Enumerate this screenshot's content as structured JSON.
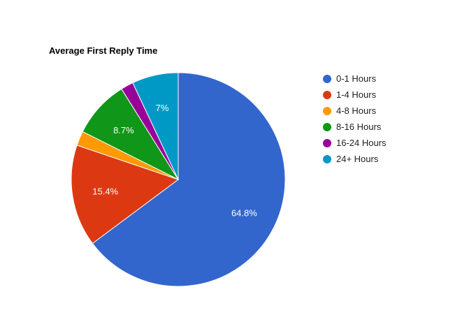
{
  "chart_data": {
    "type": "pie",
    "title": "Average First Reply Time",
    "categories": [
      "0-1 Hours",
      "1-4 Hours",
      "4-8 Hours",
      "8-16 Hours",
      "16-24 Hours",
      "24+ Hours"
    ],
    "values": [
      64.8,
      15.4,
      2.2,
      8.7,
      1.9,
      7.0
    ],
    "data_labels": [
      "64.8%",
      "15.4%",
      "",
      "8.7%",
      "",
      "7%"
    ],
    "colors": [
      "#3366cc",
      "#dc3912",
      "#ff9900",
      "#109618",
      "#990099",
      "#0099c6"
    ],
    "legend_position": "right",
    "start_angle": "top",
    "direction": "clockwise"
  }
}
